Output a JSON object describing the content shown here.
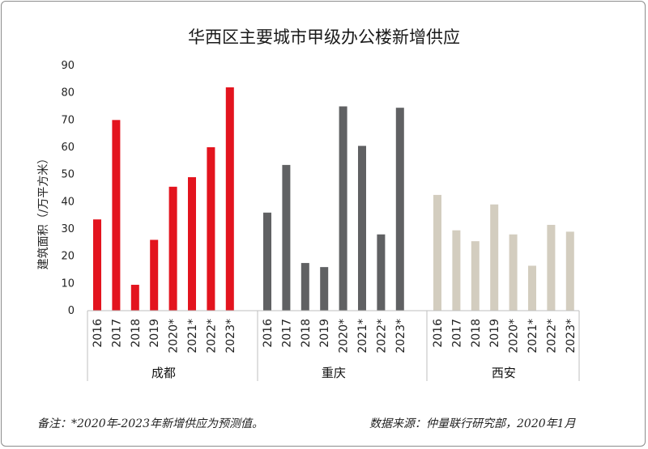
{
  "header": {
    "title": "华西区主要城市甲级办公楼新增供应"
  },
  "footer": {
    "note_left": "备注：*2020年-2023年新增供应为预测值。",
    "note_right": "数据来源：仲量联行研究部，2020年1月"
  },
  "chart_data": {
    "type": "bar",
    "title": "华西区主要城市甲级办公楼新增供应",
    "xlabel": "",
    "ylabel": "建筑面积（/万平方米）",
    "ylim": [
      0,
      90
    ],
    "yticks": [
      0,
      10,
      20,
      30,
      40,
      50,
      60,
      70,
      80,
      90
    ],
    "grid": false,
    "legend": "none",
    "categories": [
      "2016",
      "2017",
      "2018",
      "2019",
      "2020*",
      "2021*",
      "2022*",
      "2023*"
    ],
    "groups": [
      {
        "name": "成都",
        "color": "#e3141e",
        "values": [
          33.5,
          70,
          9.5,
          26,
          45.5,
          49,
          60,
          82
        ]
      },
      {
        "name": "重庆",
        "color": "#606163",
        "values": [
          36,
          53.5,
          17.5,
          16,
          75,
          60.5,
          28,
          74.5
        ]
      },
      {
        "name": "西安",
        "color": "#d3cdbf",
        "values": [
          42.5,
          29.5,
          25.5,
          39,
          28,
          16.5,
          31.5,
          29
        ]
      }
    ]
  }
}
